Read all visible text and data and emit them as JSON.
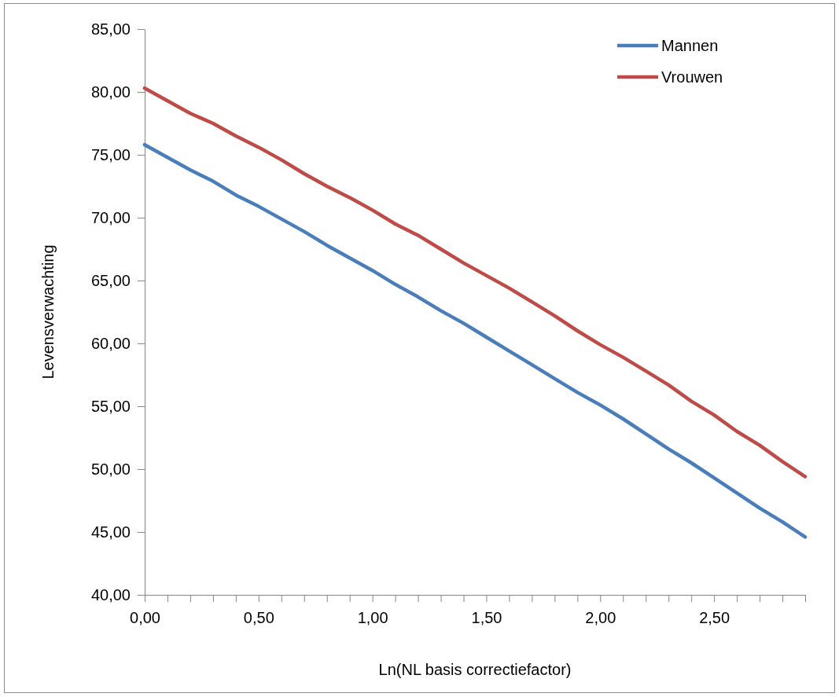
{
  "chart_data": {
    "type": "line",
    "xlabel": "Ln(NL basis correctiefactor)",
    "ylabel": "Levensverwachting",
    "x": [
      0,
      0.1,
      0.2,
      0.3,
      0.4,
      0.5,
      0.6,
      0.7,
      0.8,
      0.9,
      1.0,
      1.1,
      1.2,
      1.3,
      1.4,
      1.5,
      1.6,
      1.7,
      1.8,
      1.9,
      2.0,
      2.1,
      2.2,
      2.3,
      2.4,
      2.5,
      2.6,
      2.7,
      2.8,
      2.9
    ],
    "series": [
      {
        "name": "Mannen",
        "color": "#4a7ebb",
        "values": [
          75.8,
          74.8,
          73.8,
          72.9,
          71.8,
          70.9,
          69.9,
          68.9,
          67.8,
          66.8,
          65.8,
          64.7,
          63.7,
          62.6,
          61.6,
          60.5,
          59.4,
          58.3,
          57.2,
          56.1,
          55.1,
          54.0,
          52.8,
          51.6,
          50.5,
          49.3,
          48.1,
          46.9,
          45.8,
          44.6
        ]
      },
      {
        "name": "Vrouwen",
        "color": "#be4b48",
        "values": [
          80.3,
          79.3,
          78.3,
          77.5,
          76.5,
          75.6,
          74.6,
          73.5,
          72.5,
          71.6,
          70.6,
          69.5,
          68.6,
          67.5,
          66.4,
          65.4,
          64.4,
          63.3,
          62.2,
          61.0,
          59.9,
          58.9,
          57.8,
          56.7,
          55.4,
          54.3,
          53.0,
          51.9,
          50.6,
          49.4
        ]
      }
    ],
    "xlim": [
      0,
      2.9
    ],
    "xticks": [
      {
        "value": 0,
        "label": "0,00"
      },
      {
        "value": 0.1,
        "label": null
      },
      {
        "value": 0.2,
        "label": null
      },
      {
        "value": 0.3,
        "label": null
      },
      {
        "value": 0.4,
        "label": null
      },
      {
        "value": 0.5,
        "label": "0,50"
      },
      {
        "value": 0.6,
        "label": null
      },
      {
        "value": 0.7,
        "label": null
      },
      {
        "value": 0.8,
        "label": null
      },
      {
        "value": 0.9,
        "label": null
      },
      {
        "value": 1.0,
        "label": "1,00"
      },
      {
        "value": 1.1,
        "label": null
      },
      {
        "value": 1.2,
        "label": null
      },
      {
        "value": 1.3,
        "label": null
      },
      {
        "value": 1.4,
        "label": null
      },
      {
        "value": 1.5,
        "label": "1,50"
      },
      {
        "value": 1.6,
        "label": null
      },
      {
        "value": 1.7,
        "label": null
      },
      {
        "value": 1.8,
        "label": null
      },
      {
        "value": 1.9,
        "label": null
      },
      {
        "value": 2.0,
        "label": "2,00"
      },
      {
        "value": 2.1,
        "label": null
      },
      {
        "value": 2.2,
        "label": null
      },
      {
        "value": 2.3,
        "label": null
      },
      {
        "value": 2.4,
        "label": null
      },
      {
        "value": 2.5,
        "label": "2,50"
      },
      {
        "value": 2.6,
        "label": null
      },
      {
        "value": 2.7,
        "label": null
      },
      {
        "value": 2.8,
        "label": null
      },
      {
        "value": 2.9,
        "label": null
      }
    ],
    "ylim": [
      40,
      85
    ],
    "yticks": [
      {
        "value": 40,
        "label": "40,00"
      },
      {
        "value": 45,
        "label": "45,00"
      },
      {
        "value": 50,
        "label": "50,00"
      },
      {
        "value": 55,
        "label": "55,00"
      },
      {
        "value": 60,
        "label": "60,00"
      },
      {
        "value": 65,
        "label": "65,00"
      },
      {
        "value": 70,
        "label": "70,00"
      },
      {
        "value": 75,
        "label": "75,00"
      },
      {
        "value": 80,
        "label": "80,00"
      },
      {
        "value": 85,
        "label": "85,00"
      }
    ],
    "grid": false,
    "legend": "top right",
    "marker": "none",
    "line_style": "solid"
  }
}
